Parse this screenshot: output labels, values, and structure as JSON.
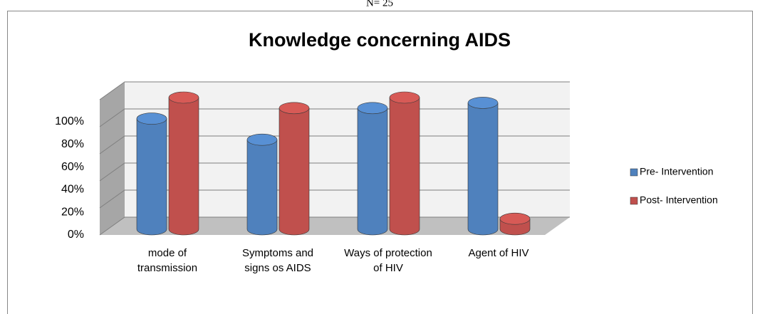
{
  "chart_data": {
    "type": "bar3d",
    "subtitle": "N= 25",
    "title": "Knowledge concerning AIDS",
    "categories": [
      "mode of transmission",
      "Symptoms and signs os AIDS",
      "Ways of protection of HIV",
      "Agent of HIV"
    ],
    "series": [
      {
        "name": "Pre- Intervention",
        "color": "#4f81bd",
        "values": [
          84,
          68,
          92,
          96
        ]
      },
      {
        "name": "Post- Intervention",
        "color": "#c0504d",
        "values": [
          100,
          92,
          100,
          8
        ]
      }
    ],
    "ylim": [
      0,
      100
    ],
    "yticks": [
      {
        "value": 0,
        "label": "0%"
      },
      {
        "value": 20,
        "label": "20%"
      },
      {
        "value": 40,
        "label": "40%"
      },
      {
        "value": 60,
        "label": "60%"
      },
      {
        "value": 80,
        "label": "80%"
      },
      {
        "value": 100,
        "label": "100%"
      }
    ],
    "grid": true,
    "legend": "right"
  }
}
